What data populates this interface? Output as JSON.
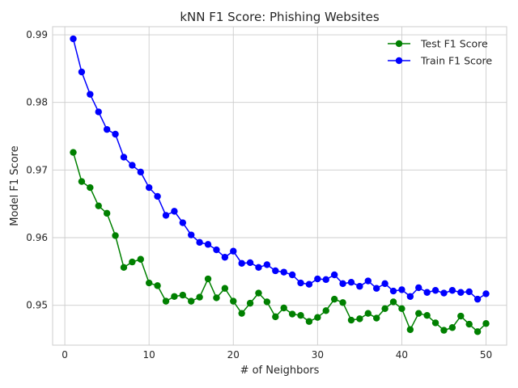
{
  "chart_data": {
    "type": "line",
    "title": "kNN F1 Score: Phishing Websites",
    "xlabel": "# of Neighbors",
    "ylabel": "Model F1 Score",
    "xlim": [
      -1.45,
      52.45
    ],
    "ylim": [
      0.9441,
      0.9912
    ],
    "xticks": [
      0,
      10,
      20,
      30,
      40,
      50
    ],
    "yticks": [
      0.95,
      0.96,
      0.97,
      0.98,
      0.99
    ],
    "ytick_labels": [
      "0.95",
      "0.96",
      "0.97",
      "0.98",
      "0.99"
    ],
    "grid": true,
    "legend": "top-right",
    "x": [
      1,
      2,
      3,
      4,
      5,
      6,
      7,
      8,
      9,
      10,
      11,
      12,
      13,
      14,
      15,
      16,
      17,
      18,
      19,
      20,
      21,
      22,
      23,
      24,
      25,
      26,
      27,
      28,
      29,
      30,
      31,
      32,
      33,
      34,
      35,
      36,
      37,
      38,
      39,
      40,
      41,
      42,
      43,
      44,
      45,
      46,
      47,
      48,
      49,
      50
    ],
    "series": [
      {
        "name": "Test F1 Score",
        "color": "#008000",
        "values": [
          0.9726,
          0.9683,
          0.9674,
          0.9647,
          0.9636,
          0.9603,
          0.9556,
          0.9564,
          0.9568,
          0.9533,
          0.9529,
          0.9506,
          0.9513,
          0.9515,
          0.9506,
          0.9512,
          0.9539,
          0.9511,
          0.9525,
          0.9506,
          0.9488,
          0.9503,
          0.9518,
          0.9505,
          0.9483,
          0.9496,
          0.9487,
          0.9485,
          0.9476,
          0.9482,
          0.9492,
          0.9509,
          0.9504,
          0.9478,
          0.948,
          0.9488,
          0.9481,
          0.9495,
          0.9505,
          0.9495,
          0.9464,
          0.9488,
          0.9485,
          0.9474,
          0.9463,
          0.9467,
          0.9484,
          0.9472,
          0.9461,
          0.9473
        ]
      },
      {
        "name": "Train F1 Score",
        "color": "#0000ff",
        "values": [
          0.9894,
          0.9845,
          0.9812,
          0.9786,
          0.976,
          0.9753,
          0.9719,
          0.9707,
          0.9697,
          0.9674,
          0.9661,
          0.9633,
          0.9639,
          0.9622,
          0.9604,
          0.9593,
          0.959,
          0.9582,
          0.9571,
          0.958,
          0.9562,
          0.9563,
          0.9556,
          0.956,
          0.9551,
          0.9549,
          0.9545,
          0.9533,
          0.9531,
          0.9539,
          0.9538,
          0.9545,
          0.9532,
          0.9534,
          0.9528,
          0.9536,
          0.9525,
          0.9532,
          0.9521,
          0.9523,
          0.9513,
          0.9526,
          0.9519,
          0.9522,
          0.9518,
          0.9522,
          0.9519,
          0.952,
          0.9509,
          0.9517
        ]
      }
    ]
  }
}
